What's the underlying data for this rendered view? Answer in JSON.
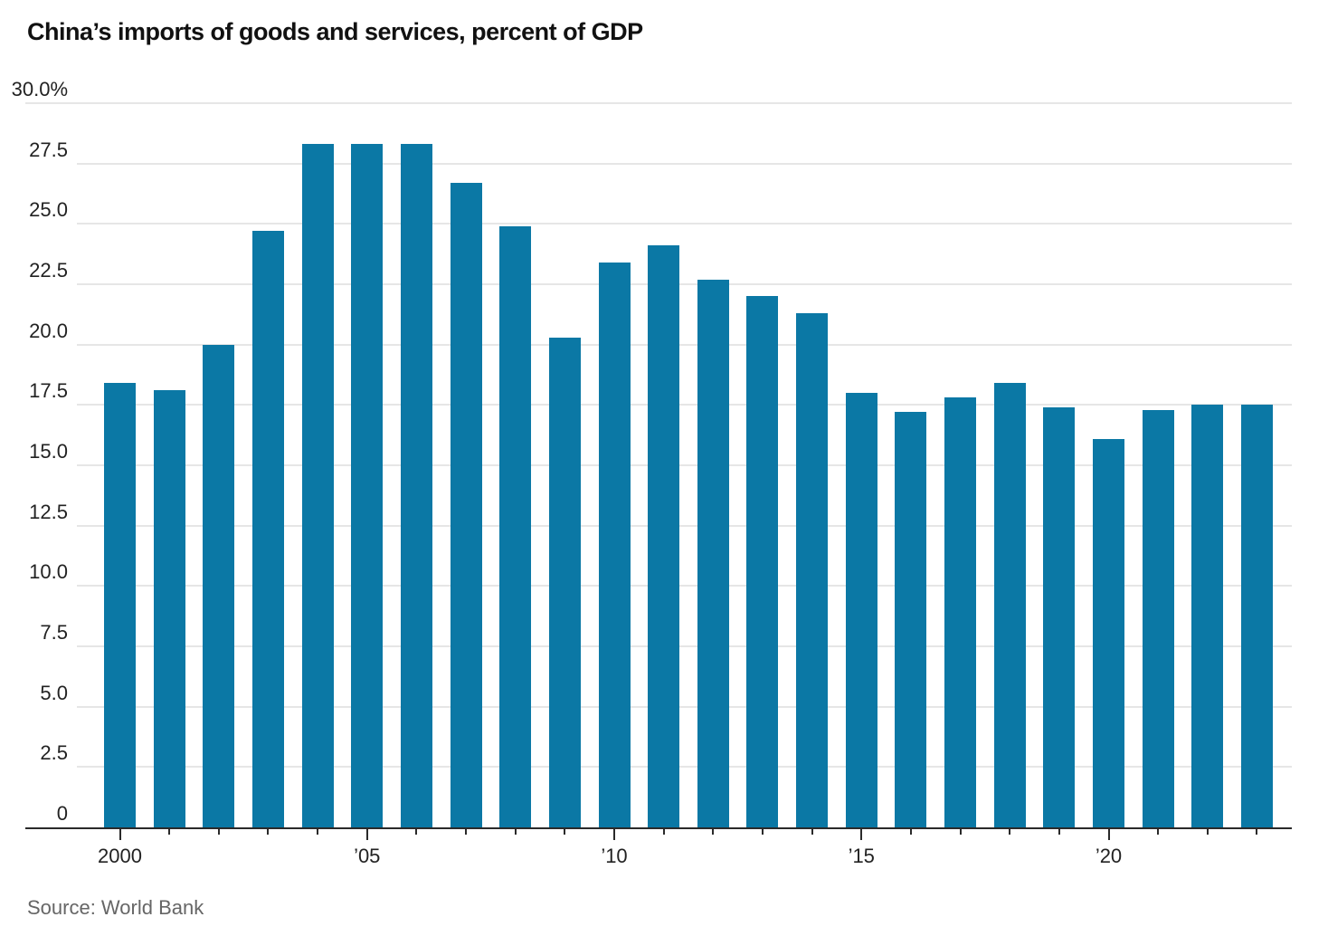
{
  "chart_data": {
    "type": "bar",
    "title": "China’s imports of goods and services, percent of GDP",
    "source": "Source: World Bank",
    "xlabel": "",
    "ylabel": "percent of GDP",
    "categories": [
      2000,
      2001,
      2002,
      2003,
      2004,
      2005,
      2006,
      2007,
      2008,
      2009,
      2010,
      2011,
      2012,
      2013,
      2014,
      2015,
      2016,
      2017,
      2018,
      2019,
      2020,
      2021,
      2022,
      2023
    ],
    "values": [
      18.4,
      18.1,
      20.0,
      24.7,
      28.3,
      28.3,
      28.3,
      26.7,
      24.9,
      20.3,
      23.4,
      24.1,
      22.7,
      22.0,
      21.3,
      18.0,
      17.2,
      17.8,
      18.4,
      17.4,
      16.1,
      17.3,
      17.5,
      17.5
    ],
    "ylim": [
      0,
      30
    ],
    "ytick_step": 2.5,
    "ytick_labels": [
      "0",
      "2.5",
      "5.0",
      "7.5",
      "10.0",
      "12.5",
      "15.0",
      "17.5",
      "20.0",
      "22.5",
      "25.0",
      "27.5",
      "30.0%"
    ],
    "xticks": [
      {
        "index": 0,
        "label": "2000"
      },
      {
        "index": 5,
        "label": "’05"
      },
      {
        "index": 10,
        "label": "’10"
      },
      {
        "index": 15,
        "label": "’15"
      },
      {
        "index": 20,
        "label": "’20"
      }
    ],
    "grid": true,
    "legend": null,
    "colors": {
      "bar": "#0b78a5",
      "grid": "#e6e6e6",
      "axis": "#2a2a2a",
      "title_text": "#111111",
      "axis_text": "#222222",
      "source_text": "#666666"
    }
  }
}
